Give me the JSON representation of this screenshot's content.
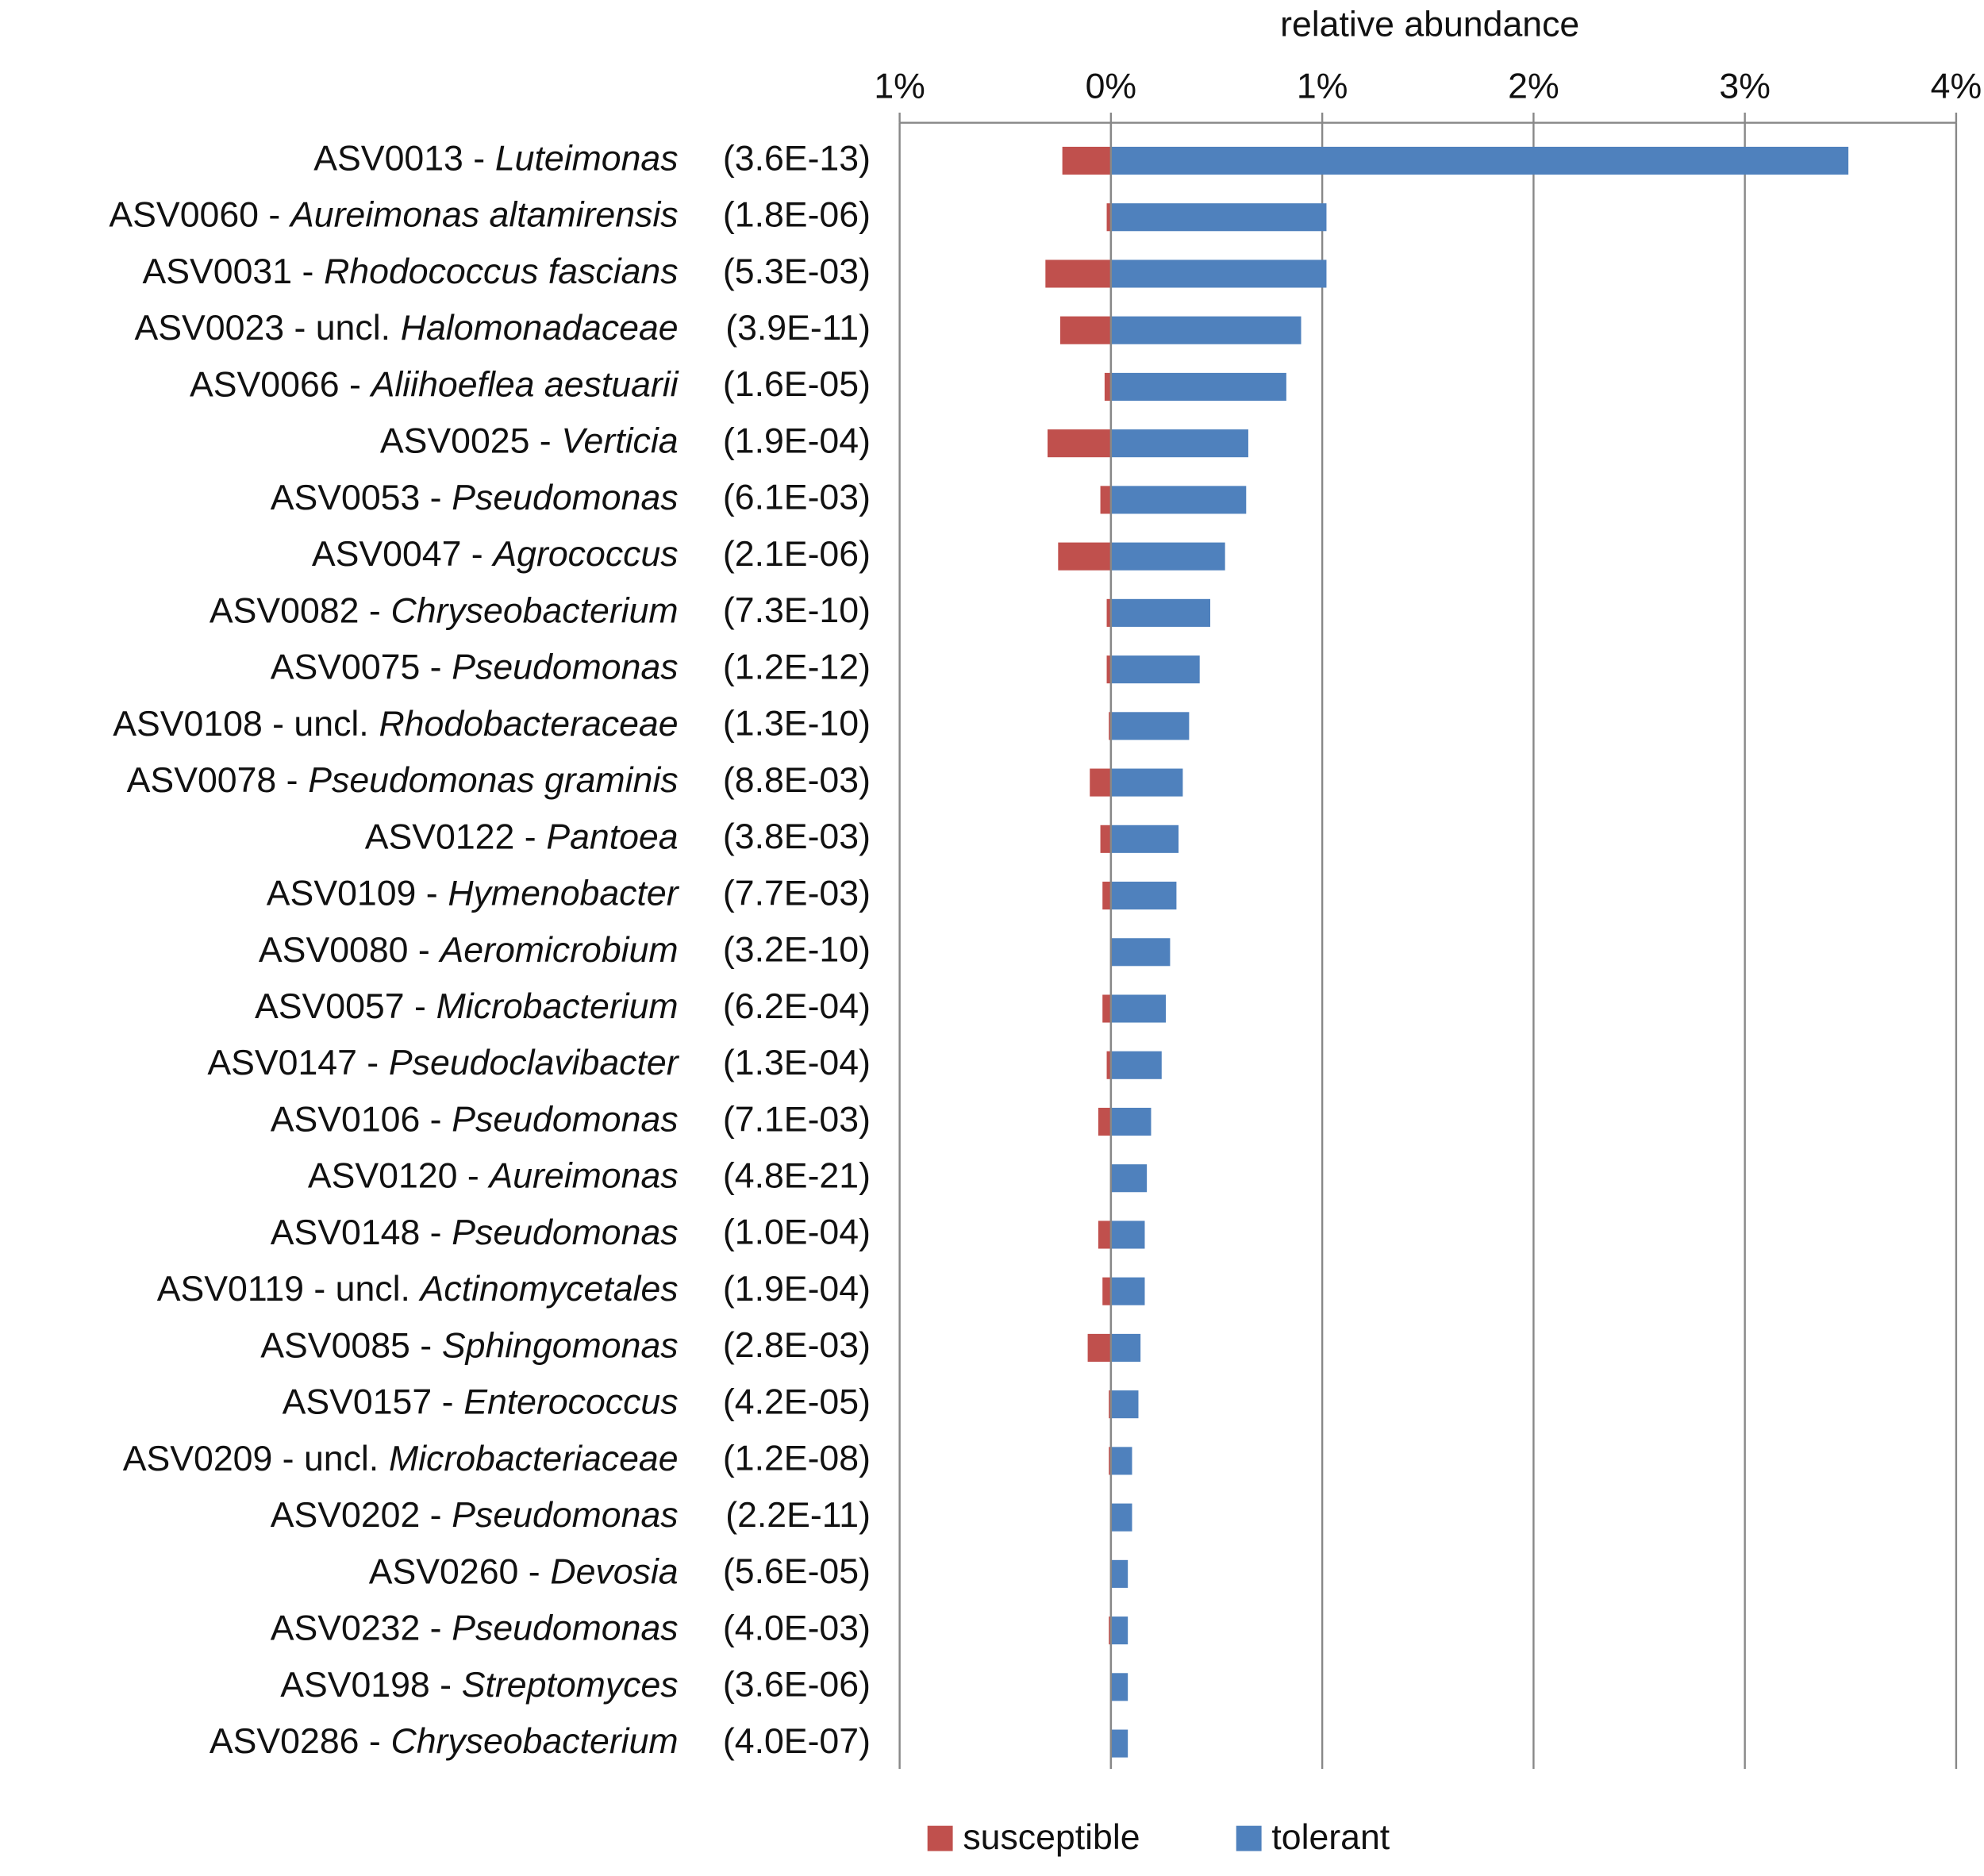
{
  "chart_data": {
    "type": "bar",
    "orientation": "horizontal",
    "xlabel": "relative abundance",
    "categories": [
      {
        "id": "ASV0013 -",
        "taxon": "Luteimonas"
      },
      {
        "id": "ASV0060 -",
        "taxon": "Aureimonas altamirensis"
      },
      {
        "id": "ASV0031 -",
        "taxon": "Rhodococcus fascians"
      },
      {
        "id": "ASV0023 - uncl.",
        "taxon": "Halomonadaceae"
      },
      {
        "id": "ASV0066 -",
        "taxon": "Aliihoeflea aestuarii"
      },
      {
        "id": "ASV0025 -",
        "taxon": "Verticia"
      },
      {
        "id": "ASV0053 -",
        "taxon": "Pseudomonas"
      },
      {
        "id": "ASV0047 -",
        "taxon": "Agrococcus"
      },
      {
        "id": "ASV0082 -",
        "taxon": "Chryseobacterium"
      },
      {
        "id": "ASV0075 -",
        "taxon": "Pseudomonas"
      },
      {
        "id": "ASV0108 - uncl.",
        "taxon": "Rhodobacteraceae"
      },
      {
        "id": "ASV0078 -",
        "taxon": "Pseudomonas graminis"
      },
      {
        "id": "ASV0122 -",
        "taxon": "Pantoea"
      },
      {
        "id": "ASV0109 -",
        "taxon": "Hymenobacter"
      },
      {
        "id": "ASV0080 -",
        "taxon": "Aeromicrobium"
      },
      {
        "id": "ASV0057 -",
        "taxon": "Microbacterium"
      },
      {
        "id": "ASV0147 -",
        "taxon": "Pseudoclavibacter"
      },
      {
        "id": "ASV0106 -",
        "taxon": "Pseudomonas"
      },
      {
        "id": "ASV0120 -",
        "taxon": "Aureimonas"
      },
      {
        "id": "ASV0148 -",
        "taxon": "Pseudomonas"
      },
      {
        "id": "ASV0119 - uncl.",
        "taxon": "Actinomycetales"
      },
      {
        "id": "ASV0085 -",
        "taxon": "Sphingomonas"
      },
      {
        "id": "ASV0157 -",
        "taxon": "Enterococcus"
      },
      {
        "id": "ASV0209 - uncl.",
        "taxon": "Microbacteriaceae"
      },
      {
        "id": "ASV0202 -",
        "taxon": "Pseudomonas"
      },
      {
        "id": "ASV0260 -",
        "taxon": "Devosia"
      },
      {
        "id": "ASV0232 -",
        "taxon": "Pseudomonas"
      },
      {
        "id": "ASV0198 -",
        "taxon": "Streptomyces"
      },
      {
        "id": "ASV0286 -",
        "taxon": "Chryseobacterium"
      }
    ],
    "p_values": [
      "(3.6E-13)",
      "(1.8E-06)",
      "(5.3E-03)",
      "(3.9E-11)",
      "(1.6E-05)",
      "(1.9E-04)",
      "(6.1E-03)",
      "(2.1E-06)",
      "(7.3E-10)",
      "(1.2E-12)",
      "(1.3E-10)",
      "(8.8E-03)",
      "(3.8E-03)",
      "(7.7E-03)",
      "(3.2E-10)",
      "(6.2E-04)",
      "(1.3E-04)",
      "(7.1E-03)",
      "(4.8E-21)",
      "(1.0E-04)",
      "(1.9E-04)",
      "(2.8E-03)",
      "(4.2E-05)",
      "(1.2E-08)",
      "(2.2E-11)",
      "(5.6E-05)",
      "(4.0E-03)",
      "(3.6E-06)",
      "(4.0E-07)"
    ],
    "series": [
      {
        "name": "susceptible",
        "color": "#c0504d",
        "values": [
          -0.23,
          -0.02,
          -0.31,
          -0.24,
          -0.03,
          -0.3,
          -0.05,
          -0.25,
          -0.02,
          -0.02,
          -0.01,
          -0.1,
          -0.05,
          -0.04,
          0,
          -0.04,
          -0.02,
          -0.06,
          0,
          -0.06,
          -0.04,
          -0.11,
          -0.01,
          -0.01,
          0,
          0,
          -0.01,
          0,
          0
        ]
      },
      {
        "name": "tolerant",
        "color": "#4f81bd",
        "values": [
          3.49,
          1.02,
          1.02,
          0.9,
          0.83,
          0.65,
          0.64,
          0.54,
          0.47,
          0.42,
          0.37,
          0.34,
          0.32,
          0.31,
          0.28,
          0.26,
          0.24,
          0.19,
          0.17,
          0.16,
          0.16,
          0.14,
          0.13,
          0.1,
          0.1,
          0.08,
          0.08,
          0.08,
          0.08
        ]
      }
    ],
    "xlim": [
      -1,
      4
    ],
    "xticks": [
      {
        "value": -1,
        "label": "1%"
      },
      {
        "value": 0,
        "label": "0%"
      },
      {
        "value": 1,
        "label": "1%"
      },
      {
        "value": 2,
        "label": "2%"
      },
      {
        "value": 3,
        "label": "3%"
      },
      {
        "value": 4,
        "label": "4%"
      }
    ],
    "grid": true,
    "legend": "bottom"
  }
}
